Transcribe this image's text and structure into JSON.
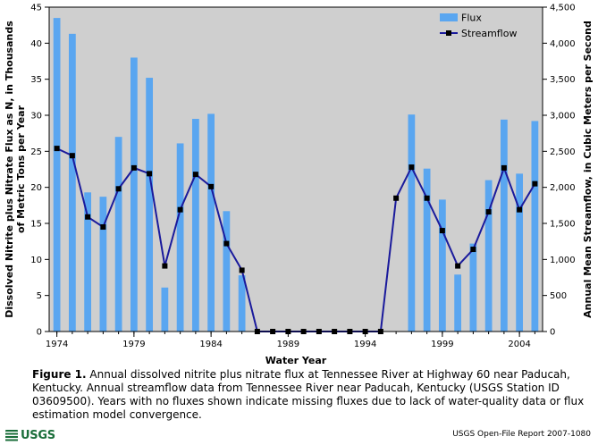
{
  "chart_data": {
    "type": "bar",
    "xlabel": "Water Year",
    "ylabel_left": "Dissolved Nitrite plus Nitrate Flux as N, in Thousands of Metric Tons per Year",
    "ylabel_right": "Annual Mean Streamflow, in Cubic Meters per Second",
    "ylim_left": [
      0,
      45
    ],
    "ylim_right": [
      0,
      4500
    ],
    "xlim": [
      1974,
      2005
    ],
    "left_ticks": [
      "0",
      "5",
      "10",
      "15",
      "20",
      "25",
      "30",
      "35",
      "40",
      "45"
    ],
    "right_ticks": [
      "0",
      "500",
      "1,000",
      "1,500",
      "2,000",
      "2,500",
      "3,000",
      "3,500",
      "4,000",
      "4,500"
    ],
    "x_ticks": [
      "1974",
      "1979",
      "1984",
      "1989",
      "1994",
      "1999",
      "2004"
    ],
    "legend_position": "top-right",
    "grid": false,
    "flux": {
      "name": "Flux",
      "color": "#5aa6f0",
      "x": [
        1974,
        1975,
        1976,
        1977,
        1978,
        1979,
        1980,
        1981,
        1982,
        1983,
        1984,
        1985,
        1986,
        1997,
        1998,
        1999,
        2000,
        2001,
        2002,
        2003,
        2004,
        2005
      ],
      "values": [
        43.5,
        41.3,
        19.3,
        18.7,
        27.0,
        38.0,
        35.2,
        6.1,
        26.1,
        29.5,
        30.2,
        16.7,
        7.8,
        30.1,
        22.6,
        18.3,
        7.9,
        12.2,
        21.0,
        29.4,
        21.9,
        29.2
      ]
    },
    "streamflow": {
      "name": "Streamflow",
      "color": "#1a1a9c",
      "x": [
        1974,
        1975,
        1976,
        1977,
        1978,
        1979,
        1980,
        1981,
        1982,
        1983,
        1984,
        1985,
        1986,
        1987,
        1988,
        1989,
        1990,
        1991,
        1992,
        1993,
        1994,
        1995,
        1996,
        1997,
        1998,
        1999,
        2000,
        2001,
        2002,
        2003,
        2004,
        2005
      ],
      "values": [
        2540,
        2440,
        1590,
        1450,
        1980,
        2270,
        2190,
        910,
        1690,
        2180,
        2010,
        1220,
        850,
        0,
        0,
        0,
        0,
        0,
        0,
        0,
        0,
        0,
        1850,
        2280,
        1850,
        1400,
        910,
        1140,
        1660,
        2270,
        1690,
        2050
      ]
    }
  },
  "caption": {
    "figure_label": "Figure 1.",
    "text": " Annual dissolved nitrite plus nitrate flux at Tennessee River at Highway 60 near Paducah, Kentucky. Annual streamflow data from Tennessee River near Paducah, Kentucky (USGS Station ID 03609500). Years with no fluxes shown indicate missing fluxes due to lack of water-quality data or flux estimation model convergence."
  },
  "footer": {
    "logo_text": "USGS",
    "report": "USGS Open-File Report 2007-1080"
  }
}
